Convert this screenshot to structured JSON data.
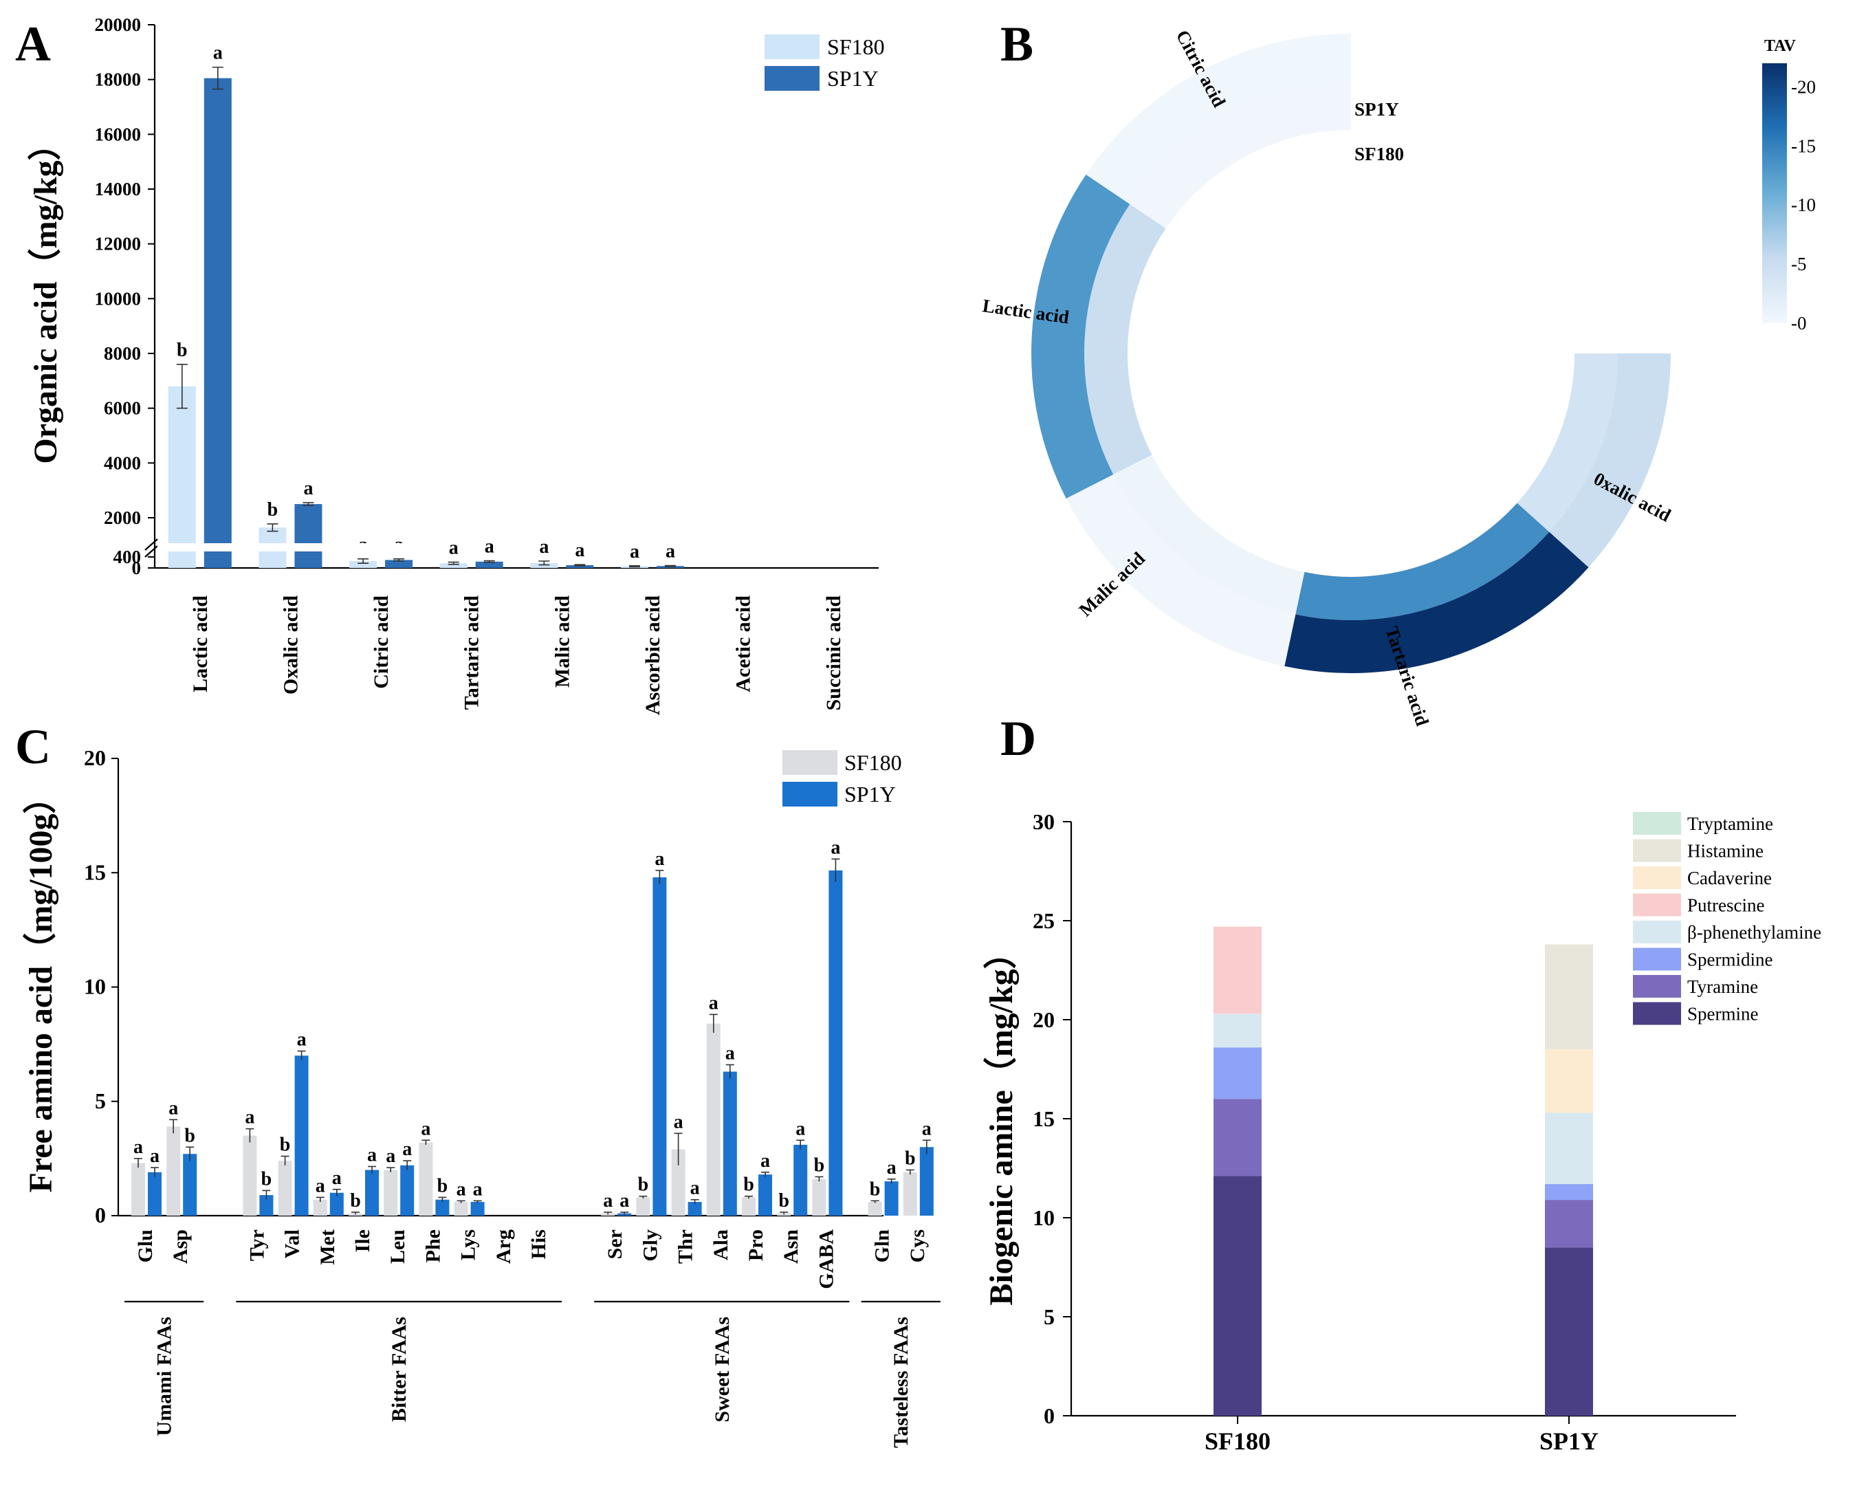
{
  "chart_data": [
    {
      "panel": "A",
      "type": "bar",
      "panel_letter": "A",
      "ylabel": "Organic acid（mg/kg）",
      "y_ticks": [
        "0",
        "400",
        "2000",
        "4000",
        "6000",
        "8000",
        "10000",
        "12000",
        "14000",
        "16000",
        "18000",
        "20000"
      ],
      "ylim": [
        0,
        20000
      ],
      "axis_break": "between 400 and 2000",
      "categories": [
        "Lactic acid",
        "Oxalic acid",
        "Citric acid",
        "Tartaric acid",
        "Malic acid",
        "Ascorbic acid",
        "Acetic acid",
        "Succinic acid"
      ],
      "series": [
        {
          "name": "SF180",
          "color": "#cfe5f8",
          "values": [
            6800,
            1600,
            250,
            170,
            180,
            60,
            0,
            0
          ],
          "errors": [
            800,
            150,
            80,
            40,
            70,
            20,
            0,
            0
          ],
          "sig": [
            "b",
            "b",
            "a",
            "a",
            "a",
            "a",
            "",
            ""
          ]
        },
        {
          "name": "SP1Y",
          "color": "#2e6eb5",
          "values": [
            18050,
            2500,
            290,
            230,
            100,
            70,
            0,
            0
          ],
          "errors": [
            400,
            50,
            40,
            30,
            20,
            15,
            0,
            0
          ],
          "sig": [
            "a",
            "a",
            "a",
            "a",
            "a",
            "a",
            "",
            ""
          ]
        }
      ],
      "legend": [
        "SF180",
        "SP1Y"
      ]
    },
    {
      "panel": "B",
      "type": "heatmap",
      "panel_letter": "B",
      "layout": "circular",
      "rows": [
        "SP1Y",
        "SF180"
      ],
      "categories": [
        "Citric acid",
        "Lactic acid",
        "Malic acid",
        "Tartaric acid",
        "0xalic acid"
      ],
      "values": {
        "SP1Y": [
          0.4,
          13,
          0.3,
          22,
          5
        ],
        "SF180": [
          0.3,
          5,
          0.6,
          14,
          4
        ]
      },
      "colorbar": {
        "title": "TAV",
        "ticks": [
          "-0",
          "-5",
          "-10",
          "-15",
          "-20"
        ],
        "range": [
          0,
          22
        ],
        "colors": [
          "#f2f8fd",
          "#c6dbef",
          "#6aaed6",
          "#2171b5",
          "#08306b"
        ]
      }
    },
    {
      "panel": "C",
      "type": "bar",
      "panel_letter": "C",
      "ylabel": "Free amino acid（mg/100g）",
      "y_ticks": [
        "0",
        "5",
        "10",
        "15",
        "20"
      ],
      "ylim": [
        0,
        20
      ],
      "categories": [
        "Glu",
        "Asp",
        "Tyr",
        "Val",
        "Met",
        "Ile",
        "Leu",
        "Phe",
        "Lys",
        "Arg",
        "His",
        "Ser",
        "Gly",
        "Thr",
        "Ala",
        "Pro",
        "Asn",
        "GABA",
        "Gln",
        "Cys"
      ],
      "series": [
        {
          "name": "SF180",
          "color": "#dcdde1",
          "values": [
            2.3,
            3.9,
            3.5,
            2.4,
            0.7,
            0.1,
            2.0,
            3.2,
            0.6,
            0,
            0,
            0.1,
            0.8,
            2.9,
            8.4,
            0.8,
            0.1,
            1.6,
            0.6,
            1.9
          ],
          "errors": [
            0.2,
            0.3,
            0.3,
            0.2,
            0.1,
            0.05,
            0.1,
            0.1,
            0.05,
            0,
            0,
            0.05,
            0.05,
            0.7,
            0.4,
            0.05,
            0.05,
            0.1,
            0.05,
            0.1
          ],
          "sig": [
            "a",
            "a",
            "a",
            "b",
            "a",
            "b",
            "a",
            "a",
            "a",
            "",
            "",
            "a",
            "b",
            "a",
            "a",
            "b",
            "b",
            "b",
            "b",
            "b"
          ]
        },
        {
          "name": "SP1Y",
          "color": "#1a73cf",
          "values": [
            1.9,
            2.7,
            0.9,
            7.0,
            1.0,
            2.0,
            2.2,
            0.7,
            0.6,
            0,
            0,
            0.1,
            14.8,
            0.6,
            6.3,
            1.8,
            3.1,
            15.1,
            1.5,
            3.0
          ],
          "errors": [
            0.2,
            0.3,
            0.2,
            0.2,
            0.15,
            0.15,
            0.2,
            0.1,
            0.05,
            0,
            0,
            0.05,
            0.3,
            0.1,
            0.3,
            0.1,
            0.2,
            0.5,
            0.1,
            0.3
          ],
          "sig": [
            "a",
            "b",
            "b",
            "a",
            "a",
            "a",
            "a",
            "b",
            "a",
            "",
            "",
            "a",
            "a",
            "a",
            "a",
            "a",
            "a",
            "a",
            "a",
            "a"
          ]
        }
      ],
      "groups": [
        {
          "name": "Umami FAAs",
          "members": [
            "Glu",
            "Asp"
          ]
        },
        {
          "name": "Bitter FAAs",
          "members": [
            "Tyr",
            "Val",
            "Met",
            "Ile",
            "Leu",
            "Phe",
            "Lys",
            "Arg",
            "His"
          ]
        },
        {
          "name": "Sweet FAAs",
          "members": [
            "Ser",
            "Gly",
            "Thr",
            "Ala",
            "Pro",
            "Asn",
            "GABA"
          ]
        },
        {
          "name": "Tasteless FAAs",
          "members": [
            "Gln",
            "Cys"
          ]
        }
      ],
      "legend": [
        "SF180",
        "SP1Y"
      ]
    },
    {
      "panel": "D",
      "type": "bar",
      "stacked": true,
      "panel_letter": "D",
      "ylabel": "Biogenic amine（mg/kg）",
      "y_ticks": [
        "0",
        "5",
        "10",
        "15",
        "20",
        "25",
        "30"
      ],
      "ylim": [
        0,
        30
      ],
      "categories": [
        "SF180",
        "SP1Y"
      ],
      "series": [
        {
          "name": "Spermine",
          "color": "#4a3f85",
          "values": [
            12.1,
            8.5
          ]
        },
        {
          "name": "Tyramine",
          "color": "#7c6bbd",
          "values": [
            3.9,
            2.4
          ]
        },
        {
          "name": "Spermidine",
          "color": "#8ea3f7",
          "values": [
            2.6,
            0.8
          ]
        },
        {
          "name": "β-phenethylamine",
          "color": "#d8e8f1",
          "values": [
            1.7,
            3.6
          ]
        },
        {
          "name": "Putrescine",
          "color": "#f9cdcd",
          "values": [
            4.4,
            0
          ]
        },
        {
          "name": "Cadaverine",
          "color": "#fcebd0",
          "values": [
            0,
            3.2
          ]
        },
        {
          "name": "Histamine",
          "color": "#e8e6da",
          "values": [
            0,
            5.3
          ]
        },
        {
          "name": "Tryptamine",
          "color": "#cfe9dc",
          "values": [
            0,
            0
          ]
        }
      ],
      "legend": [
        "Tryptamine",
        "Histamine",
        "Cadaverine",
        "Putrescine",
        "β-phenethylamine",
        "Spermidine",
        "Tyramine",
        "Spermine"
      ]
    }
  ]
}
